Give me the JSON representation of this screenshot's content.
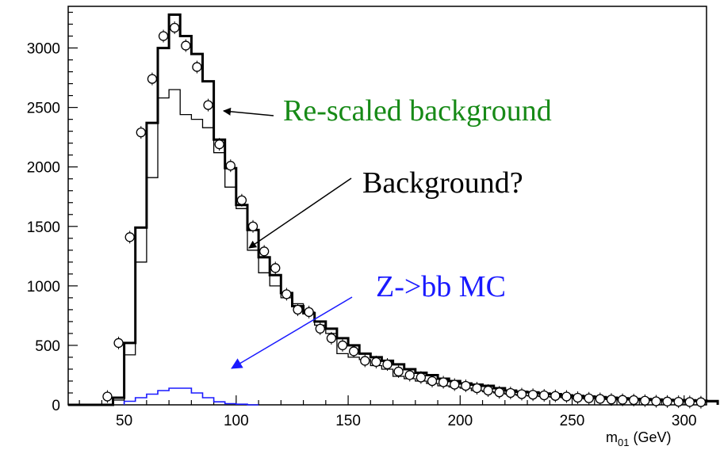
{
  "chart_data": {
    "type": "histogram",
    "xlabel_main": "m",
    "xlabel_sub": "01",
    "xlabel_unit": "(GeV)",
    "xlim": [
      25,
      310
    ],
    "ylim": [
      0,
      3350
    ],
    "bin_width": 5,
    "x_ticks": [
      50,
      100,
      150,
      200,
      250,
      300
    ],
    "y_ticks": [
      0,
      500,
      1000,
      1500,
      2000,
      2500,
      3000
    ],
    "series": [
      {
        "name": "Re-scaled background",
        "style": "thick-line",
        "color": "#000000",
        "bin_start": 25,
        "values": [
          0,
          0,
          0,
          0,
          60,
          520,
          1490,
          2370,
          3000,
          3280,
          3100,
          2950,
          2720,
          2230,
          1990,
          1680,
          1470,
          1240,
          1090,
          940,
          830,
          770,
          700,
          640,
          560,
          500,
          430,
          400,
          370,
          340,
          300,
          270,
          250,
          220,
          200,
          180,
          170,
          160,
          140,
          120,
          110,
          105,
          95,
          90,
          80,
          75,
          70,
          65,
          60,
          55,
          50,
          48,
          45,
          42,
          40,
          38,
          35,
          32
        ]
      },
      {
        "name": "Background?",
        "style": "thin-line",
        "color": "#000000",
        "bin_start": 25,
        "values": [
          0,
          0,
          0,
          0,
          40,
          420,
          1200,
          1910,
          2580,
          2650,
          2440,
          2400,
          2330,
          2120,
          1830,
          1650,
          1300,
          1110,
          1000,
          900,
          850,
          780,
          670,
          600,
          430,
          400,
          380,
          330,
          300,
          240,
          220,
          200,
          180,
          160,
          150,
          140,
          120,
          110,
          100,
          90,
          80,
          75,
          70,
          65,
          60,
          55,
          50,
          48,
          45,
          42,
          40,
          38,
          35,
          32,
          30,
          28,
          26,
          24
        ]
      },
      {
        "name": "Z->bb MC",
        "style": "histogram",
        "color": "#1a1aff",
        "bin_start": 50,
        "values": [
          30,
          60,
          90,
          120,
          140,
          140,
          100,
          60,
          25,
          10,
          5,
          0
        ]
      },
      {
        "name": "data",
        "style": "markers",
        "color": "#000000",
        "x": [
          42.5,
          47.5,
          52.5,
          57.5,
          62.5,
          67.5,
          72.5,
          77.5,
          82.5,
          87.5,
          92.5,
          97.5,
          102.5,
          107.5,
          112.5,
          117.5,
          122.5,
          127.5,
          132.5,
          137.5,
          142.5,
          147.5,
          152.5,
          157.5,
          162.5,
          167.5,
          172.5,
          177.5,
          182.5,
          187.5,
          192.5,
          197.5,
          202.5,
          207.5,
          212.5,
          217.5,
          222.5,
          227.5,
          232.5,
          237.5,
          242.5,
          247.5,
          252.5,
          257.5,
          262.5,
          267.5,
          272.5,
          277.5,
          282.5,
          287.5,
          292.5,
          297.5,
          302.5,
          307.5
        ],
        "y": [
          70,
          520,
          1410,
          2290,
          2740,
          3100,
          3170,
          3020,
          2840,
          2520,
          2190,
          2010,
          1720,
          1500,
          1290,
          1150,
          930,
          800,
          780,
          640,
          560,
          500,
          450,
          370,
          360,
          340,
          280,
          250,
          230,
          200,
          190,
          170,
          160,
          140,
          120,
          105,
          100,
          90,
          85,
          80,
          75,
          70,
          60,
          55,
          50,
          45,
          42,
          40,
          35,
          30,
          28,
          26,
          24,
          22
        ]
      }
    ],
    "annotations": [
      {
        "text": "Re-scaled background",
        "color": "#178a17"
      },
      {
        "text": "Background?",
        "color": "#000000"
      },
      {
        "text": "Z->bb MC",
        "color": "#1a1aff"
      }
    ]
  }
}
